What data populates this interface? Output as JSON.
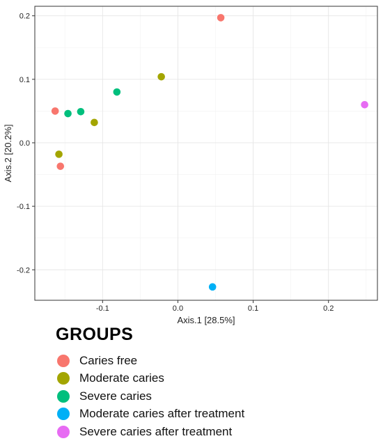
{
  "chart_data": {
    "type": "scatter",
    "xlabel": "Axis.1  [28.5%]",
    "ylabel": "Axis.2  [20.2%]",
    "xlim": [
      -0.19,
      0.265
    ],
    "ylim": [
      -0.248,
      0.215
    ],
    "x_ticks": [
      -0.1,
      0.0,
      0.1,
      0.2
    ],
    "x_tick_labels": [
      "-0.1",
      "0.0",
      "0.1",
      "0.2"
    ],
    "y_ticks": [
      -0.2,
      -0.1,
      0.0,
      0.1,
      0.2
    ],
    "y_tick_labels": [
      "-0.2",
      "-0.1",
      "0.0",
      "0.1",
      "0.2"
    ],
    "grid": true,
    "legend_title": "GROUPS",
    "legend_position": "bottom",
    "series": [
      {
        "name": "Caries free",
        "color": "#F8766D",
        "points": [
          [
            0.057,
            0.197
          ],
          [
            -0.163,
            0.05
          ],
          [
            -0.156,
            -0.037
          ]
        ]
      },
      {
        "name": "Moderate caries",
        "color": "#A3A500",
        "points": [
          [
            -0.022,
            0.104
          ],
          [
            -0.111,
            0.032
          ],
          [
            -0.158,
            -0.018
          ]
        ]
      },
      {
        "name": "Severe caries",
        "color": "#00BF7D",
        "points": [
          [
            -0.081,
            0.08
          ],
          [
            -0.129,
            0.049
          ],
          [
            -0.146,
            0.046
          ]
        ]
      },
      {
        "name": "Moderate caries after treatment",
        "color": "#00B0F6",
        "points": [
          [
            0.046,
            -0.227
          ]
        ]
      },
      {
        "name": "Severe caries after treatment",
        "color": "#E76BF3",
        "points": [
          [
            0.248,
            0.06
          ]
        ]
      }
    ]
  }
}
